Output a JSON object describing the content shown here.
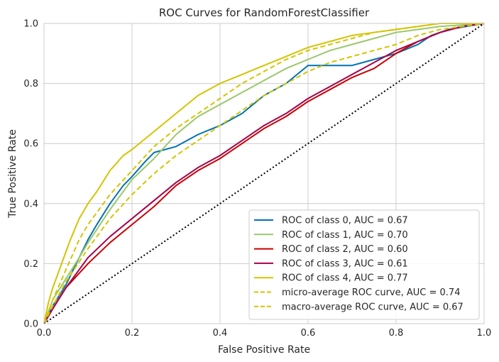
{
  "chart_data": {
    "type": "line",
    "title": "ROC Curves for RandomForestClassifier",
    "xlabel": "False Positive Rate",
    "ylabel": "True Positive Rate",
    "xlim": [
      0,
      1
    ],
    "ylim": [
      0,
      1
    ],
    "xticks": [
      "0.0",
      "0.2",
      "0.4",
      "0.6",
      "0.8",
      "1.0"
    ],
    "yticks": [
      "0.0",
      "0.2",
      "0.4",
      "0.6",
      "0.8",
      "1.0"
    ],
    "grid": true,
    "legend_position": "bottom-right",
    "series": [
      {
        "name": "ROC of class 0, AUC = 0.67",
        "color": "#0072b2",
        "dash": "solid",
        "points": [
          [
            0,
            0
          ],
          [
            0.02,
            0.06
          ],
          [
            0.05,
            0.13
          ],
          [
            0.08,
            0.22
          ],
          [
            0.1,
            0.28
          ],
          [
            0.12,
            0.33
          ],
          [
            0.15,
            0.4
          ],
          [
            0.18,
            0.46
          ],
          [
            0.2,
            0.49
          ],
          [
            0.23,
            0.54
          ],
          [
            0.25,
            0.57
          ],
          [
            0.3,
            0.59
          ],
          [
            0.35,
            0.63
          ],
          [
            0.4,
            0.66
          ],
          [
            0.45,
            0.7
          ],
          [
            0.5,
            0.76
          ],
          [
            0.55,
            0.8
          ],
          [
            0.6,
            0.86
          ],
          [
            0.65,
            0.86
          ],
          [
            0.7,
            0.86
          ],
          [
            0.75,
            0.88
          ],
          [
            0.8,
            0.9
          ],
          [
            0.85,
            0.93
          ],
          [
            0.88,
            0.96
          ],
          [
            0.92,
            0.98
          ],
          [
            1,
            1
          ]
        ]
      },
      {
        "name": "ROC of class 1, AUC = 0.70",
        "color": "#9bc76b",
        "dash": "solid",
        "points": [
          [
            0,
            0
          ],
          [
            0.02,
            0.08
          ],
          [
            0.05,
            0.15
          ],
          [
            0.08,
            0.22
          ],
          [
            0.1,
            0.27
          ],
          [
            0.15,
            0.38
          ],
          [
            0.2,
            0.48
          ],
          [
            0.25,
            0.55
          ],
          [
            0.3,
            0.63
          ],
          [
            0.35,
            0.69
          ],
          [
            0.4,
            0.73
          ],
          [
            0.45,
            0.77
          ],
          [
            0.5,
            0.81
          ],
          [
            0.55,
            0.85
          ],
          [
            0.6,
            0.88
          ],
          [
            0.65,
            0.91
          ],
          [
            0.7,
            0.93
          ],
          [
            0.75,
            0.95
          ],
          [
            0.8,
            0.97
          ],
          [
            0.85,
            0.98
          ],
          [
            0.9,
            0.99
          ],
          [
            1,
            1
          ]
        ]
      },
      {
        "name": "ROC of class 2, AUC = 0.60",
        "color": "#c90000",
        "dash": "solid",
        "points": [
          [
            0,
            0
          ],
          [
            0.02,
            0.05
          ],
          [
            0.05,
            0.12
          ],
          [
            0.1,
            0.2
          ],
          [
            0.15,
            0.27
          ],
          [
            0.2,
            0.33
          ],
          [
            0.25,
            0.39
          ],
          [
            0.3,
            0.46
          ],
          [
            0.35,
            0.51
          ],
          [
            0.4,
            0.55
          ],
          [
            0.45,
            0.6
          ],
          [
            0.5,
            0.65
          ],
          [
            0.55,
            0.69
          ],
          [
            0.6,
            0.74
          ],
          [
            0.65,
            0.78
          ],
          [
            0.7,
            0.82
          ],
          [
            0.75,
            0.85
          ],
          [
            0.8,
            0.9
          ],
          [
            0.85,
            0.94
          ],
          [
            0.9,
            0.97
          ],
          [
            0.95,
            0.99
          ],
          [
            1,
            1
          ]
        ]
      },
      {
        "name": "ROC of class 3, AUC = 0.61",
        "color": "#a8004b",
        "dash": "solid",
        "points": [
          [
            0,
            0
          ],
          [
            0.02,
            0.05
          ],
          [
            0.05,
            0.12
          ],
          [
            0.1,
            0.22
          ],
          [
            0.15,
            0.29
          ],
          [
            0.2,
            0.35
          ],
          [
            0.25,
            0.41
          ],
          [
            0.3,
            0.47
          ],
          [
            0.35,
            0.52
          ],
          [
            0.4,
            0.56
          ],
          [
            0.45,
            0.61
          ],
          [
            0.5,
            0.66
          ],
          [
            0.55,
            0.7
          ],
          [
            0.6,
            0.75
          ],
          [
            0.65,
            0.79
          ],
          [
            0.7,
            0.83
          ],
          [
            0.75,
            0.87
          ],
          [
            0.8,
            0.91
          ],
          [
            0.85,
            0.94
          ],
          [
            0.9,
            0.97
          ],
          [
            0.95,
            0.99
          ],
          [
            1,
            1
          ]
        ]
      },
      {
        "name": "ROC of class 4, AUC = 0.77",
        "color": "#d4c400",
        "dash": "solid",
        "points": [
          [
            0,
            0
          ],
          [
            0.01,
            0.07
          ],
          [
            0.02,
            0.12
          ],
          [
            0.04,
            0.2
          ],
          [
            0.06,
            0.28
          ],
          [
            0.08,
            0.35
          ],
          [
            0.1,
            0.4
          ],
          [
            0.12,
            0.44
          ],
          [
            0.15,
            0.51
          ],
          [
            0.18,
            0.56
          ],
          [
            0.2,
            0.58
          ],
          [
            0.25,
            0.64
          ],
          [
            0.3,
            0.7
          ],
          [
            0.35,
            0.76
          ],
          [
            0.4,
            0.8
          ],
          [
            0.45,
            0.83
          ],
          [
            0.5,
            0.86
          ],
          [
            0.55,
            0.89
          ],
          [
            0.6,
            0.92
          ],
          [
            0.65,
            0.94
          ],
          [
            0.7,
            0.96
          ],
          [
            0.75,
            0.97
          ],
          [
            0.8,
            0.98
          ],
          [
            0.85,
            0.99
          ],
          [
            0.9,
            1.0
          ],
          [
            1,
            1
          ]
        ]
      },
      {
        "name": "micro-average ROC curve, AUC = 0.74",
        "color": "#d4c400",
        "dash": "dashed",
        "points": [
          [
            0,
            0
          ],
          [
            0.02,
            0.08
          ],
          [
            0.05,
            0.18
          ],
          [
            0.08,
            0.28
          ],
          [
            0.1,
            0.33
          ],
          [
            0.15,
            0.43
          ],
          [
            0.2,
            0.51
          ],
          [
            0.25,
            0.59
          ],
          [
            0.3,
            0.65
          ],
          [
            0.35,
            0.7
          ],
          [
            0.4,
            0.75
          ],
          [
            0.45,
            0.8
          ],
          [
            0.5,
            0.84
          ],
          [
            0.55,
            0.88
          ],
          [
            0.6,
            0.91
          ],
          [
            0.65,
            0.93
          ],
          [
            0.7,
            0.95
          ],
          [
            0.75,
            0.97
          ],
          [
            0.8,
            0.98
          ],
          [
            0.85,
            0.99
          ],
          [
            0.9,
            1.0
          ],
          [
            1,
            1
          ]
        ]
      },
      {
        "name": "macro-average ROC curve, AUC = 0.67",
        "color": "#d4c400",
        "dash": "dashed",
        "points": [
          [
            0,
            0
          ],
          [
            0.02,
            0.06
          ],
          [
            0.05,
            0.14
          ],
          [
            0.1,
            0.25
          ],
          [
            0.15,
            0.35
          ],
          [
            0.2,
            0.43
          ],
          [
            0.25,
            0.5
          ],
          [
            0.3,
            0.56
          ],
          [
            0.35,
            0.61
          ],
          [
            0.4,
            0.66
          ],
          [
            0.45,
            0.71
          ],
          [
            0.5,
            0.76
          ],
          [
            0.55,
            0.8
          ],
          [
            0.6,
            0.84
          ],
          [
            0.65,
            0.87
          ],
          [
            0.7,
            0.89
          ],
          [
            0.75,
            0.91
          ],
          [
            0.8,
            0.93
          ],
          [
            0.85,
            0.96
          ],
          [
            0.9,
            0.98
          ],
          [
            1,
            1
          ]
        ]
      }
    ],
    "reference_line": {
      "color": "#000000",
      "dash": "dotted",
      "points": [
        [
          0,
          0
        ],
        [
          1,
          1
        ]
      ]
    }
  }
}
